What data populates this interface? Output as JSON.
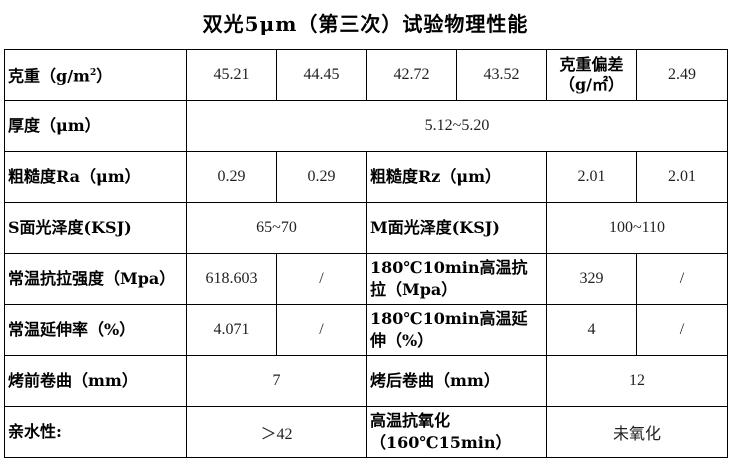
{
  "title": "双光5μm（第三次）试验物理性能",
  "rows": {
    "weight": {
      "label": "克重（g/m",
      "label_sup": "2",
      "label_end": "）",
      "values": [
        "45.21",
        "44.45",
        "42.72",
        "43.52"
      ],
      "dev_label": "克重偏差（g/㎡）",
      "dev_value": "2.49"
    },
    "thickness": {
      "label": "厚度（μm）",
      "value": "5.12~5.20"
    },
    "roughness": {
      "ra_label": "粗糙度Ra（μm）",
      "ra_values": [
        "0.29",
        "0.29"
      ],
      "rz_label": "粗糙度Rz（μm）",
      "rz_values": [
        "2.01",
        "2.01"
      ]
    },
    "gloss": {
      "s_label": "S面光泽度(KSJ)",
      "s_value": "65~70",
      "m_label": "M面光泽度(KSJ)",
      "m_value": "100~110"
    },
    "tensile": {
      "label": "常温抗拉强度（Mpa）",
      "values": [
        "618.603",
        "/"
      ],
      "hot_label": "180℃10min高温抗拉（Mpa）",
      "hot_values": [
        "329",
        "/"
      ]
    },
    "elongation": {
      "label": "常温延伸率（%）",
      "values": [
        "4.071",
        "/"
      ],
      "hot_label": "180℃10min高温延伸（%）",
      "hot_values": [
        "4",
        "/"
      ]
    },
    "curl": {
      "before_label": "烤前卷曲（mm）",
      "before_value": "7",
      "after_label": "烤后卷曲（mm）",
      "after_value": "12"
    },
    "misc": {
      "hydro_label": "亲水性:",
      "hydro_value": "＞42",
      "oxid_label": "高温抗氧化（160℃15min）",
      "oxid_value": "未氧化"
    }
  }
}
